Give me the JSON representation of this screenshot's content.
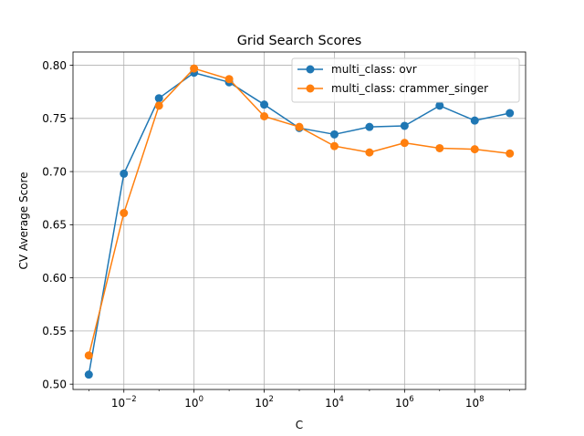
{
  "chart_data": {
    "type": "line",
    "title": "Grid Search Scores",
    "xlabel": "C",
    "ylabel": "CV Average Score",
    "xscale": "log",
    "grid": true,
    "legend_position": "top-right",
    "x": [
      0.001,
      0.01,
      0.1,
      1,
      10,
      100,
      1000,
      10000,
      100000,
      1000000,
      10000000,
      100000000,
      1000000000
    ],
    "xlim": [
      0.0003548,
      2818000000
    ],
    "ylim": [
      0.495,
      0.8125
    ],
    "x_ticks": [
      {
        "value": 0.01,
        "base": "10",
        "exp": "−2"
      },
      {
        "value": 1,
        "base": "10",
        "exp": "0"
      },
      {
        "value": 100,
        "base": "10",
        "exp": "2"
      },
      {
        "value": 10000,
        "base": "10",
        "exp": "4"
      },
      {
        "value": 1000000,
        "base": "10",
        "exp": "6"
      },
      {
        "value": 100000000,
        "base": "10",
        "exp": "8"
      }
    ],
    "y_ticks": [
      {
        "value": 0.5,
        "label": "0.50"
      },
      {
        "value": 0.55,
        "label": "0.55"
      },
      {
        "value": 0.6,
        "label": "0.60"
      },
      {
        "value": 0.65,
        "label": "0.65"
      },
      {
        "value": 0.7,
        "label": "0.70"
      },
      {
        "value": 0.75,
        "label": "0.75"
      },
      {
        "value": 0.8,
        "label": "0.80"
      }
    ],
    "series": [
      {
        "name": "multi_class: ovr",
        "color": "#1f77b4",
        "values": [
          0.509,
          0.698,
          0.769,
          0.793,
          0.784,
          0.763,
          0.741,
          0.735,
          0.742,
          0.743,
          0.762,
          0.748,
          0.755
        ]
      },
      {
        "name": "multi_class: crammer_singer",
        "color": "#ff7f0e",
        "values": [
          0.527,
          0.661,
          0.762,
          0.797,
          0.787,
          0.752,
          0.742,
          0.724,
          0.718,
          0.727,
          0.722,
          0.721,
          0.717
        ]
      }
    ]
  }
}
